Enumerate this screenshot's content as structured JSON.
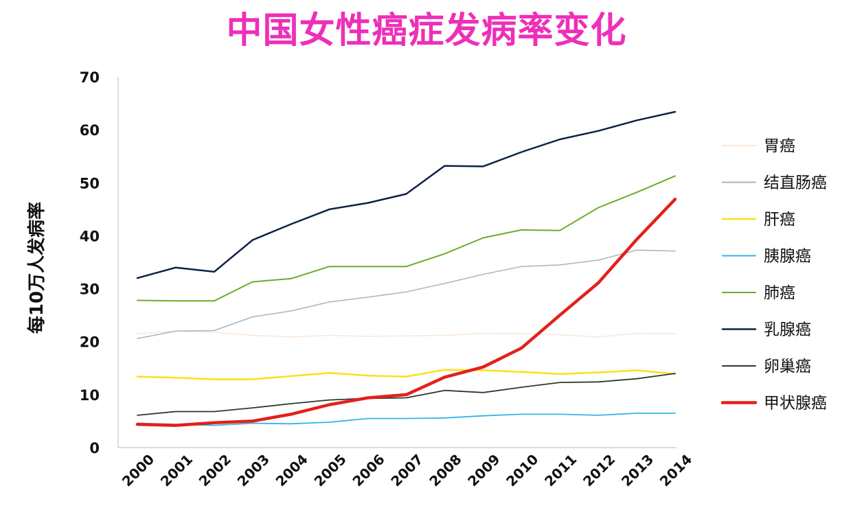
{
  "chart_data": {
    "type": "line",
    "title": "中国女性癌症发病率变化",
    "xlabel": "",
    "ylabel": "每10万人发病率",
    "x": [
      "2000",
      "2001",
      "2002",
      "2003",
      "2004",
      "2005",
      "2006",
      "2007",
      "2008",
      "2009",
      "2010",
      "2011",
      "2012",
      "2013",
      "2014"
    ],
    "ylim": [
      0,
      70
    ],
    "yticks": [
      0,
      10,
      20,
      30,
      40,
      50,
      60,
      70
    ],
    "grid": false,
    "legend_position": "right",
    "series": [
      {
        "name": "胃癌",
        "color": "#fbe6d4",
        "width": 1.5,
        "values": [
          21.5,
          22.0,
          21.8,
          21.2,
          20.9,
          21.2,
          21.0,
          21.1,
          21.2,
          21.6,
          21.5,
          21.3,
          20.9,
          21.6,
          21.5
        ]
      },
      {
        "name": "结直肠癌",
        "color": "#a9b5b3",
        "width": 1.5,
        "values": [
          20.6,
          22.0,
          22.1,
          24.7,
          25.8,
          27.5,
          28.4,
          29.4,
          31.0,
          32.7,
          34.2,
          34.5,
          35.4,
          37.3,
          37.1
        ]
      },
      {
        "name": "肝癌",
        "color": "#f9e219",
        "width": 2.5,
        "values": [
          13.4,
          13.2,
          12.9,
          12.9,
          13.5,
          14.1,
          13.6,
          13.4,
          14.7,
          14.6,
          14.3,
          13.9,
          14.2,
          14.6,
          13.9
        ]
      },
      {
        "name": "胰腺癌",
        "color": "#35b3e6",
        "width": 1.8,
        "values": [
          4.6,
          4.4,
          4.2,
          4.6,
          4.5,
          4.8,
          5.5,
          5.5,
          5.6,
          6.0,
          6.3,
          6.3,
          6.1,
          6.5,
          6.5
        ]
      },
      {
        "name": "肺癌",
        "color": "#6aac2a",
        "width": 2.0,
        "values": [
          27.8,
          27.7,
          27.7,
          31.3,
          31.9,
          34.2,
          34.2,
          34.2,
          36.6,
          39.6,
          41.1,
          41.0,
          45.3,
          48.2,
          51.3
        ]
      },
      {
        "name": "乳腺癌",
        "color": "#0f2148",
        "width": 2.5,
        "values": [
          32.0,
          34.0,
          33.2,
          39.2,
          42.2,
          45.0,
          46.2,
          47.9,
          53.2,
          53.1,
          55.8,
          58.2,
          59.8,
          61.8,
          63.4
        ]
      },
      {
        "name": "卵巢癌",
        "color": "#2a3a2a",
        "width": 1.8,
        "values": [
          6.1,
          6.8,
          6.8,
          7.5,
          8.3,
          9.0,
          9.3,
          9.4,
          10.8,
          10.4,
          11.4,
          12.3,
          12.4,
          13.0,
          14.0
        ]
      },
      {
        "name": "甲状腺癌",
        "color": "#e3201b",
        "width": 4.5,
        "values": [
          4.4,
          4.2,
          4.7,
          5.0,
          6.3,
          8.1,
          9.4,
          10.0,
          13.3,
          15.2,
          18.8,
          25.0,
          31.1,
          39.3,
          46.9
        ]
      }
    ]
  }
}
